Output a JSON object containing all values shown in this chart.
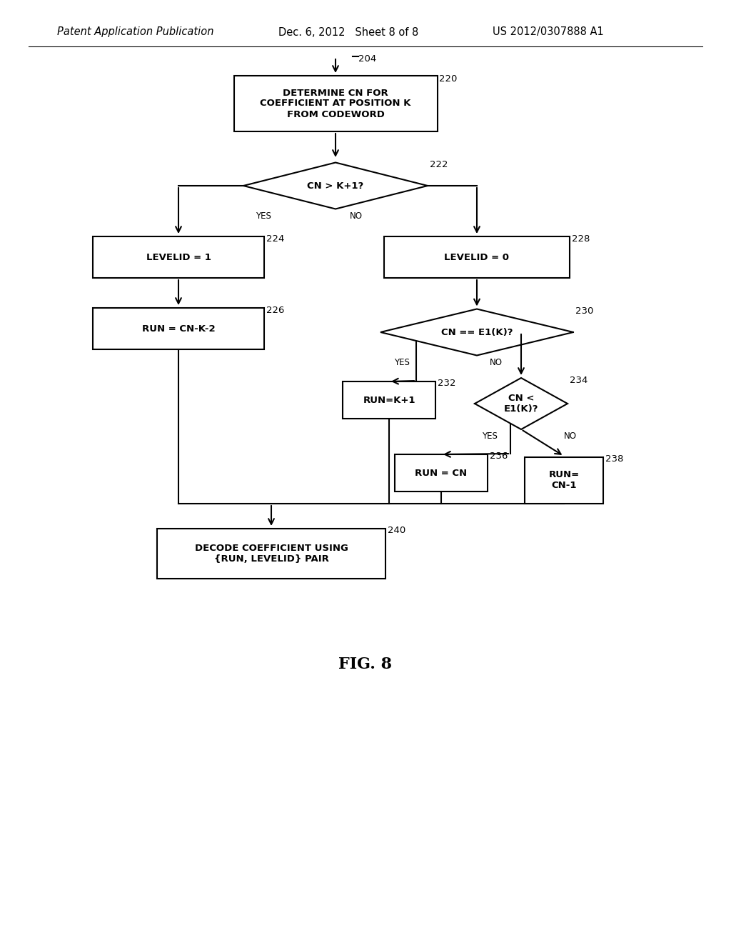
{
  "bg_color": "#ffffff",
  "header_left": "Patent Application Publication",
  "header_mid": "Dec. 6, 2012   Sheet 8 of 8",
  "header_right": "US 2012/0307888 A1",
  "fig_label": "FIG. 8",
  "lw": 1.5,
  "fs": 9.5,
  "header_fs": 10.5,
  "fig_fs": 16,
  "ref_fs": 9.5
}
